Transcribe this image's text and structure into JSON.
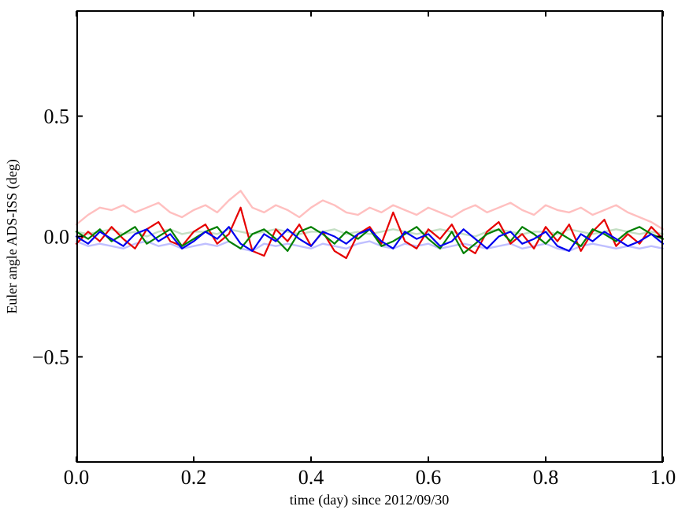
{
  "figure": {
    "background": "#ffffff",
    "frame_color": "#000000"
  },
  "chart_data": {
    "type": "line",
    "title": "",
    "xlabel": "time (day) since 2012/09/30",
    "ylabel": "Euler angle ADS-ISS (deg)",
    "xlim": [
      0.0,
      1.0
    ],
    "ylim": [
      -0.94,
      0.94
    ],
    "grid": false,
    "legend": "none",
    "xticks": {
      "values": [
        0.0,
        0.2,
        0.4,
        0.6,
        0.8,
        1.0
      ],
      "labels": [
        "0.0",
        "0.2",
        "0.4",
        "0.6",
        "0.8",
        "1.0"
      ]
    },
    "yticks": {
      "values": [
        0.5,
        0.0,
        -0.5
      ],
      "labels": [
        "0.5",
        "0.0",
        "−0.5"
      ]
    },
    "x_start": 0.0,
    "x_step": 0.02,
    "series": [
      {
        "name": "pale-green",
        "color": "#c4dfc4",
        "line_width": 2.4,
        "values": [
          0.02,
          0.01,
          0.02,
          0.03,
          0.01,
          0.02,
          0.0,
          0.02,
          0.03,
          0.01,
          0.02,
          0.02,
          0.01,
          0.03,
          0.02,
          0.01,
          0.02,
          0.03,
          0.02,
          0.01,
          0.02,
          0.02,
          0.03,
          0.01,
          0.02,
          0.01,
          0.02,
          0.03,
          0.02,
          0.01,
          0.02,
          0.03,
          0.02,
          0.01,
          0.0,
          0.02,
          0.03,
          0.02,
          0.01,
          0.02,
          0.02,
          0.01,
          0.03,
          0.02,
          0.01,
          0.02,
          0.03,
          0.02,
          0.01,
          0.02,
          0.01
        ]
      },
      {
        "name": "pale-pink",
        "color": "#ffbfbf",
        "line_width": 2.4,
        "values": [
          0.05,
          0.09,
          0.12,
          0.11,
          0.13,
          0.1,
          0.12,
          0.14,
          0.1,
          0.08,
          0.11,
          0.13,
          0.1,
          0.15,
          0.19,
          0.12,
          0.1,
          0.13,
          0.11,
          0.08,
          0.12,
          0.15,
          0.13,
          0.1,
          0.09,
          0.12,
          0.1,
          0.13,
          0.11,
          0.09,
          0.12,
          0.1,
          0.08,
          0.11,
          0.13,
          0.1,
          0.12,
          0.14,
          0.11,
          0.09,
          0.13,
          0.11,
          0.1,
          0.12,
          0.09,
          0.11,
          0.13,
          0.1,
          0.08,
          0.06,
          0.03
        ]
      },
      {
        "name": "pale-lavender",
        "color": "#bfbfff",
        "line_width": 2.4,
        "values": [
          -0.02,
          -0.04,
          -0.03,
          -0.04,
          -0.05,
          -0.03,
          -0.02,
          -0.04,
          -0.03,
          -0.05,
          -0.04,
          -0.03,
          -0.04,
          -0.02,
          -0.05,
          -0.06,
          -0.03,
          -0.04,
          -0.03,
          -0.04,
          -0.05,
          -0.03,
          -0.04,
          -0.05,
          -0.03,
          -0.02,
          -0.04,
          -0.05,
          -0.03,
          -0.04,
          -0.03,
          -0.05,
          -0.04,
          -0.03,
          -0.04,
          -0.05,
          -0.04,
          -0.03,
          -0.05,
          -0.04,
          -0.03,
          -0.05,
          -0.06,
          -0.04,
          -0.03,
          -0.04,
          -0.05,
          -0.04,
          -0.05,
          -0.04,
          -0.05
        ]
      },
      {
        "name": "red",
        "color": "#e60000",
        "line_width": 2.2,
        "values": [
          -0.03,
          0.02,
          -0.02,
          0.04,
          -0.01,
          -0.05,
          0.03,
          0.06,
          -0.02,
          -0.04,
          0.02,
          0.05,
          -0.03,
          0.01,
          0.12,
          -0.06,
          -0.08,
          0.03,
          -0.02,
          0.05,
          -0.04,
          0.02,
          -0.06,
          -0.09,
          0.01,
          0.04,
          -0.03,
          0.1,
          -0.02,
          -0.05,
          0.03,
          -0.01,
          0.05,
          -0.04,
          -0.07,
          0.02,
          0.06,
          -0.03,
          0.01,
          -0.05,
          0.04,
          -0.02,
          0.05,
          -0.06,
          0.02,
          0.07,
          -0.04,
          0.01,
          -0.03,
          0.04,
          -0.01
        ]
      },
      {
        "name": "green",
        "color": "#008000",
        "line_width": 2.2,
        "values": [
          0.02,
          -0.01,
          0.03,
          -0.02,
          0.01,
          0.04,
          -0.03,
          0.0,
          0.03,
          -0.04,
          -0.01,
          0.02,
          0.04,
          -0.02,
          -0.05,
          0.01,
          0.03,
          -0.01,
          -0.06,
          0.02,
          0.04,
          0.01,
          -0.03,
          0.02,
          -0.01,
          0.03,
          -0.04,
          -0.02,
          0.01,
          0.04,
          -0.01,
          -0.05,
          0.02,
          -0.07,
          -0.03,
          0.01,
          0.03,
          -0.02,
          0.04,
          0.01,
          -0.03,
          0.02,
          -0.01,
          -0.04,
          0.03,
          0.01,
          -0.02,
          0.02,
          0.04,
          0.01,
          -0.01
        ]
      },
      {
        "name": "blue",
        "color": "#0000ee",
        "line_width": 2.2,
        "values": [
          0.0,
          -0.03,
          0.02,
          -0.01,
          -0.04,
          0.01,
          0.03,
          -0.02,
          0.01,
          -0.05,
          -0.02,
          0.02,
          -0.01,
          0.04,
          -0.03,
          -0.06,
          0.01,
          -0.02,
          0.03,
          -0.01,
          -0.04,
          0.02,
          0.0,
          -0.03,
          0.01,
          0.03,
          -0.02,
          -0.05,
          0.02,
          -0.01,
          0.01,
          -0.04,
          -0.02,
          0.03,
          -0.01,
          -0.05,
          0.0,
          0.02,
          -0.03,
          -0.01,
          0.02,
          -0.04,
          -0.06,
          0.01,
          -0.02,
          0.02,
          -0.01,
          -0.04,
          -0.02,
          0.01,
          -0.03
        ]
      }
    ]
  }
}
